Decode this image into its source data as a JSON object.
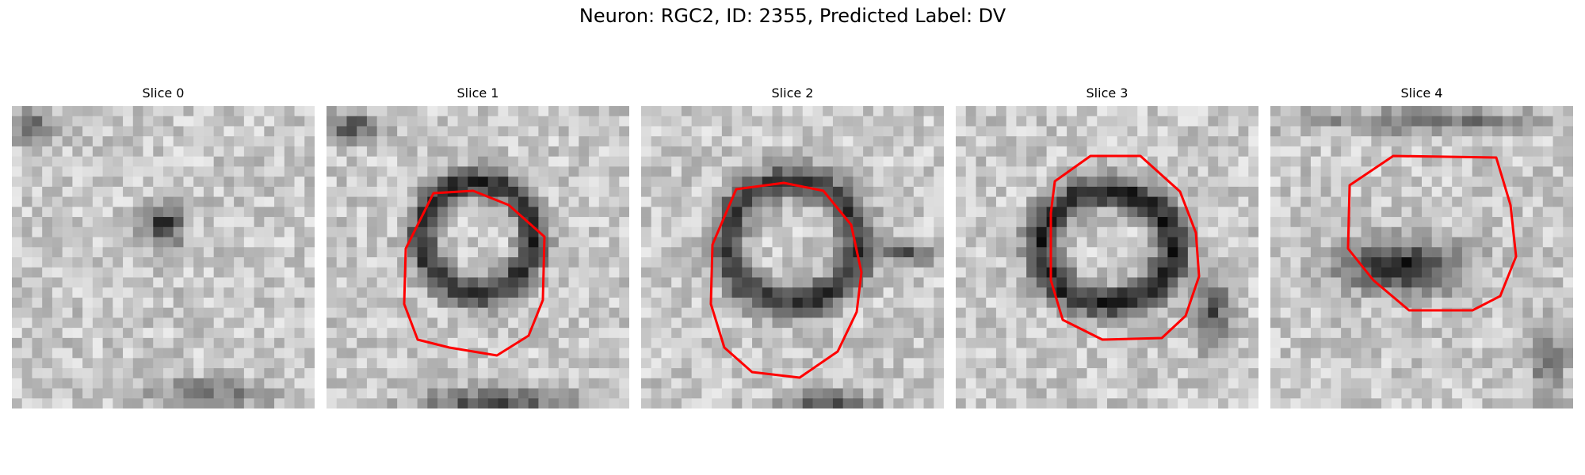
{
  "figure": {
    "title": "Neuron: RGC2, ID: 2355, Predicted Label: DV"
  },
  "panels": [
    {
      "title": "Slice 0",
      "outline": false
    },
    {
      "title": "Slice 1",
      "outline": true
    },
    {
      "title": "Slice 2",
      "outline": true
    },
    {
      "title": "Slice 3",
      "outline": true
    },
    {
      "title": "Slice 4",
      "outline": true
    }
  ],
  "colors": {
    "outline": "#ff0000",
    "background": "#ffffff"
  }
}
